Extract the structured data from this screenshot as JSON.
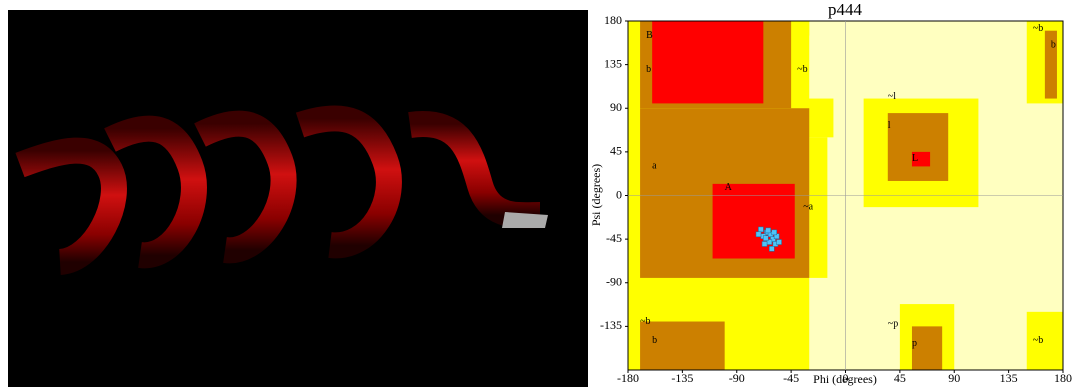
{
  "chart_data": {
    "type": "scatter",
    "title": "p444",
    "x_label": "Phi (degrees)",
    "y_label": "Psi (degrees)",
    "xlim": [
      -180,
      180
    ],
    "ylim": [
      -180,
      180
    ],
    "xticks": [
      -180,
      -135,
      -90,
      -45,
      0,
      45,
      90,
      135,
      180
    ],
    "yticks": [
      -135,
      -90,
      -45,
      0,
      45,
      90,
      135,
      180
    ],
    "annotations": [
      "B",
      "b",
      "~b",
      "a",
      "A",
      "~a",
      "~l",
      "l",
      "L",
      "~b",
      "b",
      "~p",
      "p",
      "~b",
      "b",
      "~b"
    ],
    "series": [
      {
        "color": "#4fc3f7",
        "x": [
          -70,
          -65,
          -62,
          -68,
          -60,
          -63,
          -58,
          -66,
          -72,
          -57,
          -61,
          -55,
          -64,
          -59,
          -67
        ],
        "values": [
          -35,
          -38,
          -40,
          -42,
          -45,
          -48,
          -50,
          -44,
          -40,
          -42,
          -55,
          -48,
          -36,
          -38,
          -50
        ]
      }
    ]
  }
}
